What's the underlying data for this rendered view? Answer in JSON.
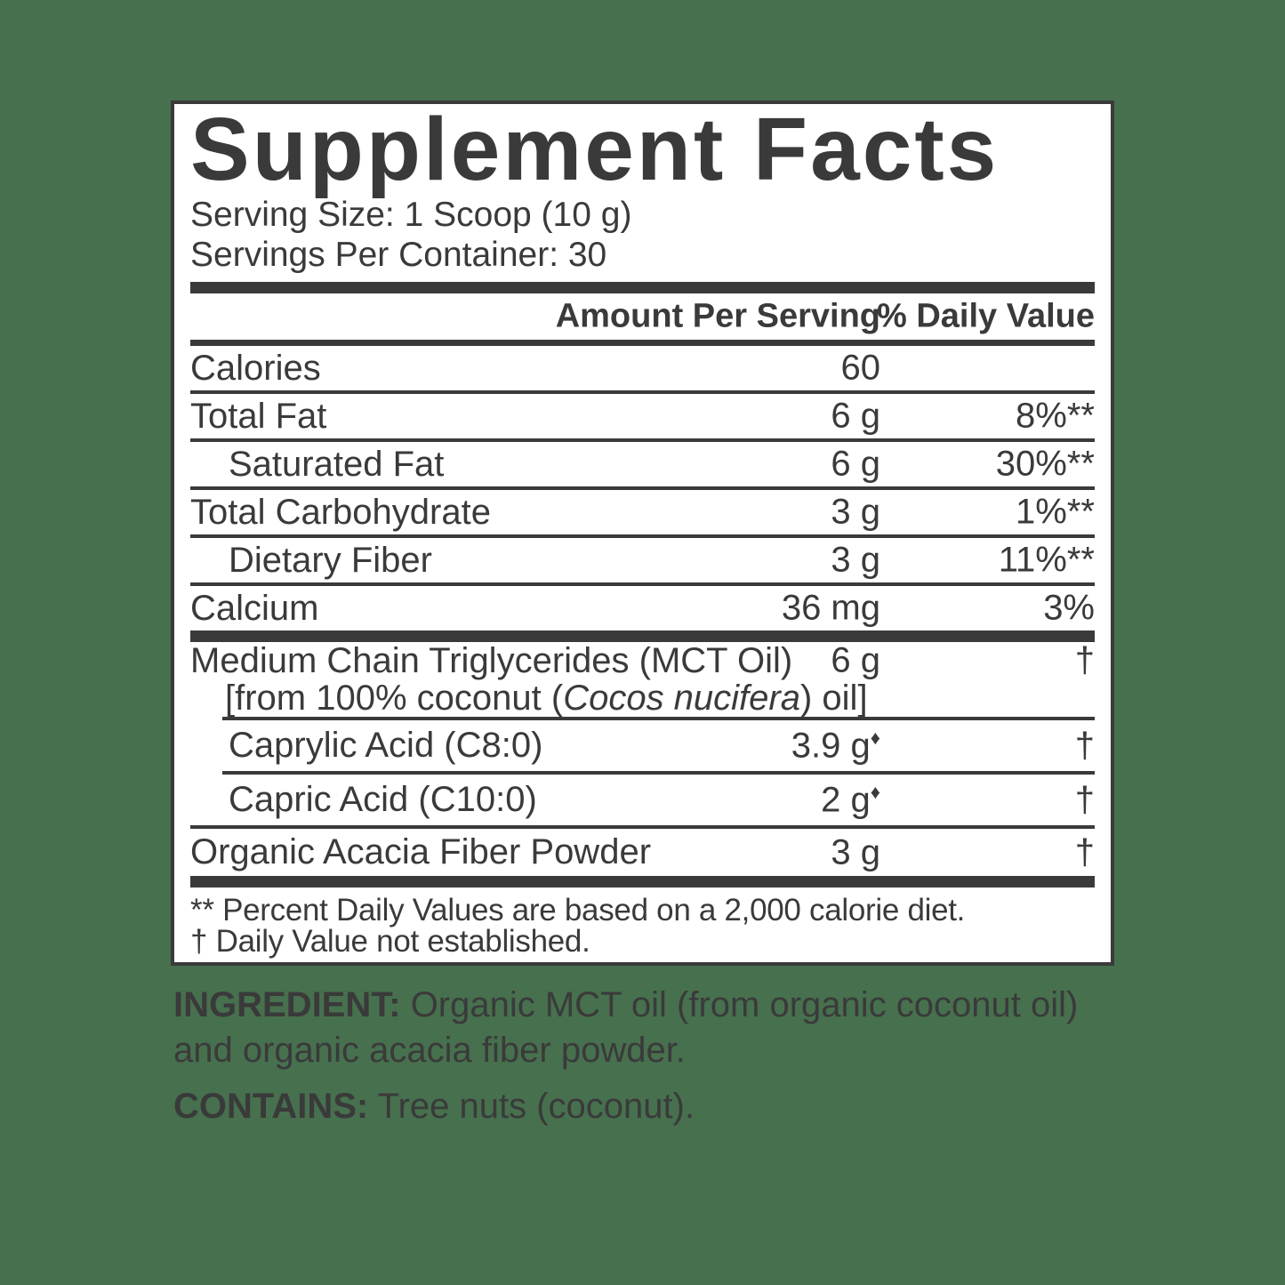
{
  "colors": {
    "page_bg": "#47704e",
    "panel_bg": "#ffffff",
    "ink": "#3a3a3a"
  },
  "panel": {
    "title": "Supplement Facts",
    "serving_size": "Serving Size: 1 Scoop (10 g)",
    "servings_per_container": "Servings Per Container: 30",
    "header": {
      "amount": "Amount Per Serving",
      "daily_value": "% Daily Value"
    },
    "rows": [
      {
        "name": "Calories",
        "amount": "60",
        "dv": ""
      },
      {
        "name": "Total Fat",
        "amount": "6 g",
        "dv": "8%**"
      },
      {
        "name": "Saturated Fat",
        "amount": "6 g",
        "dv": "30%**"
      },
      {
        "name": "Total Carbohydrate",
        "amount": "3 g",
        "dv": "1%**"
      },
      {
        "name": "Dietary Fiber",
        "amount": "3 g",
        "dv": "11%**"
      },
      {
        "name": "Calcium",
        "amount": "36 mg",
        "dv": "3%"
      }
    ],
    "rows2": [
      {
        "name": "Medium Chain Triglycerides (MCT Oil)",
        "note_pre": "[from 100% coconut (",
        "note_italic": "Cocos nucifera",
        "note_post": ") oil]",
        "amount": "6 g",
        "dv": "†"
      },
      {
        "name": "Caprylic Acid (C8:0)",
        "amount": "3.9 g",
        "mark": "♦",
        "dv": "†"
      },
      {
        "name": "Capric Acid (C10:0)",
        "amount": "2 g",
        "mark": "♦",
        "dv": "†"
      },
      {
        "name": "Organic Acacia Fiber Powder",
        "amount": "3 g",
        "dv": "†"
      }
    ],
    "footnotes": {
      "percent": "** Percent Daily Values are based on a 2,000 calorie diet.",
      "dagger": "† Daily Value not established."
    }
  },
  "ingredients": {
    "label": "INGREDIENT:",
    "text_line1": " Organic MCT oil (from organic coconut oil)",
    "text_line2": "and organic acacia fiber powder.",
    "contains_label": "CONTAINS:",
    "contains_text": " Tree nuts (coconut)."
  }
}
